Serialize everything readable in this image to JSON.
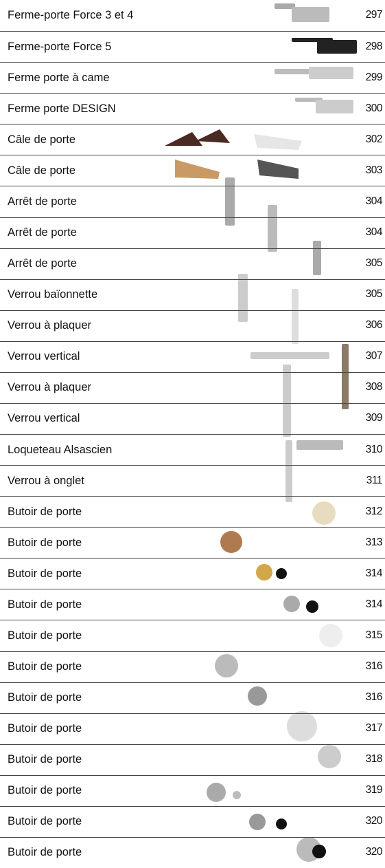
{
  "rows": [
    {
      "label": "Ferme-porte Force 3 et 4",
      "page": "297"
    },
    {
      "label": "Ferme-porte Force 5",
      "page": "298"
    },
    {
      "label": "Ferme porte à came",
      "page": "299"
    },
    {
      "label": "Ferme porte DESIGN",
      "page": "300"
    },
    {
      "label": "Câle de porte",
      "page": "302"
    },
    {
      "label": "Câle de porte",
      "page": "303"
    },
    {
      "label": "Arrêt de porte",
      "page": "304"
    },
    {
      "label": "Arrêt de porte",
      "page": "304"
    },
    {
      "label": "Arrêt de porte",
      "page": "305"
    },
    {
      "label": "Verrou baïonnette",
      "page": "305"
    },
    {
      "label": "Verrou à plaquer",
      "page": "306"
    },
    {
      "label": "Verrou vertical",
      "page": "307"
    },
    {
      "label": "Verrou à plaquer",
      "page": "308"
    },
    {
      "label": "Verrou vertical",
      "page": "309"
    },
    {
      "label": "Loqueteau Alsascien",
      "page": "310"
    },
    {
      "label": "Verrou à onglet",
      "page": "311"
    },
    {
      "label": "Butoir de porte",
      "page": "312"
    },
    {
      "label": "Butoir de porte",
      "page": "313"
    },
    {
      "label": "Butoir de porte",
      "page": "314"
    },
    {
      "label": "Butoir de porte",
      "page": "314"
    },
    {
      "label": "Butoir de porte",
      "page": "315"
    },
    {
      "label": "Butoir de porte",
      "page": "316"
    },
    {
      "label": "Butoir de porte",
      "page": "316"
    },
    {
      "label": "Butoir de porte",
      "page": "317"
    },
    {
      "label": "Butoir de porte",
      "page": "318"
    },
    {
      "label": "Butoir de porte",
      "page": "319"
    },
    {
      "label": "Butoir de porte",
      "page": "320"
    },
    {
      "label": "Butoir de porte",
      "page": "320"
    }
  ]
}
